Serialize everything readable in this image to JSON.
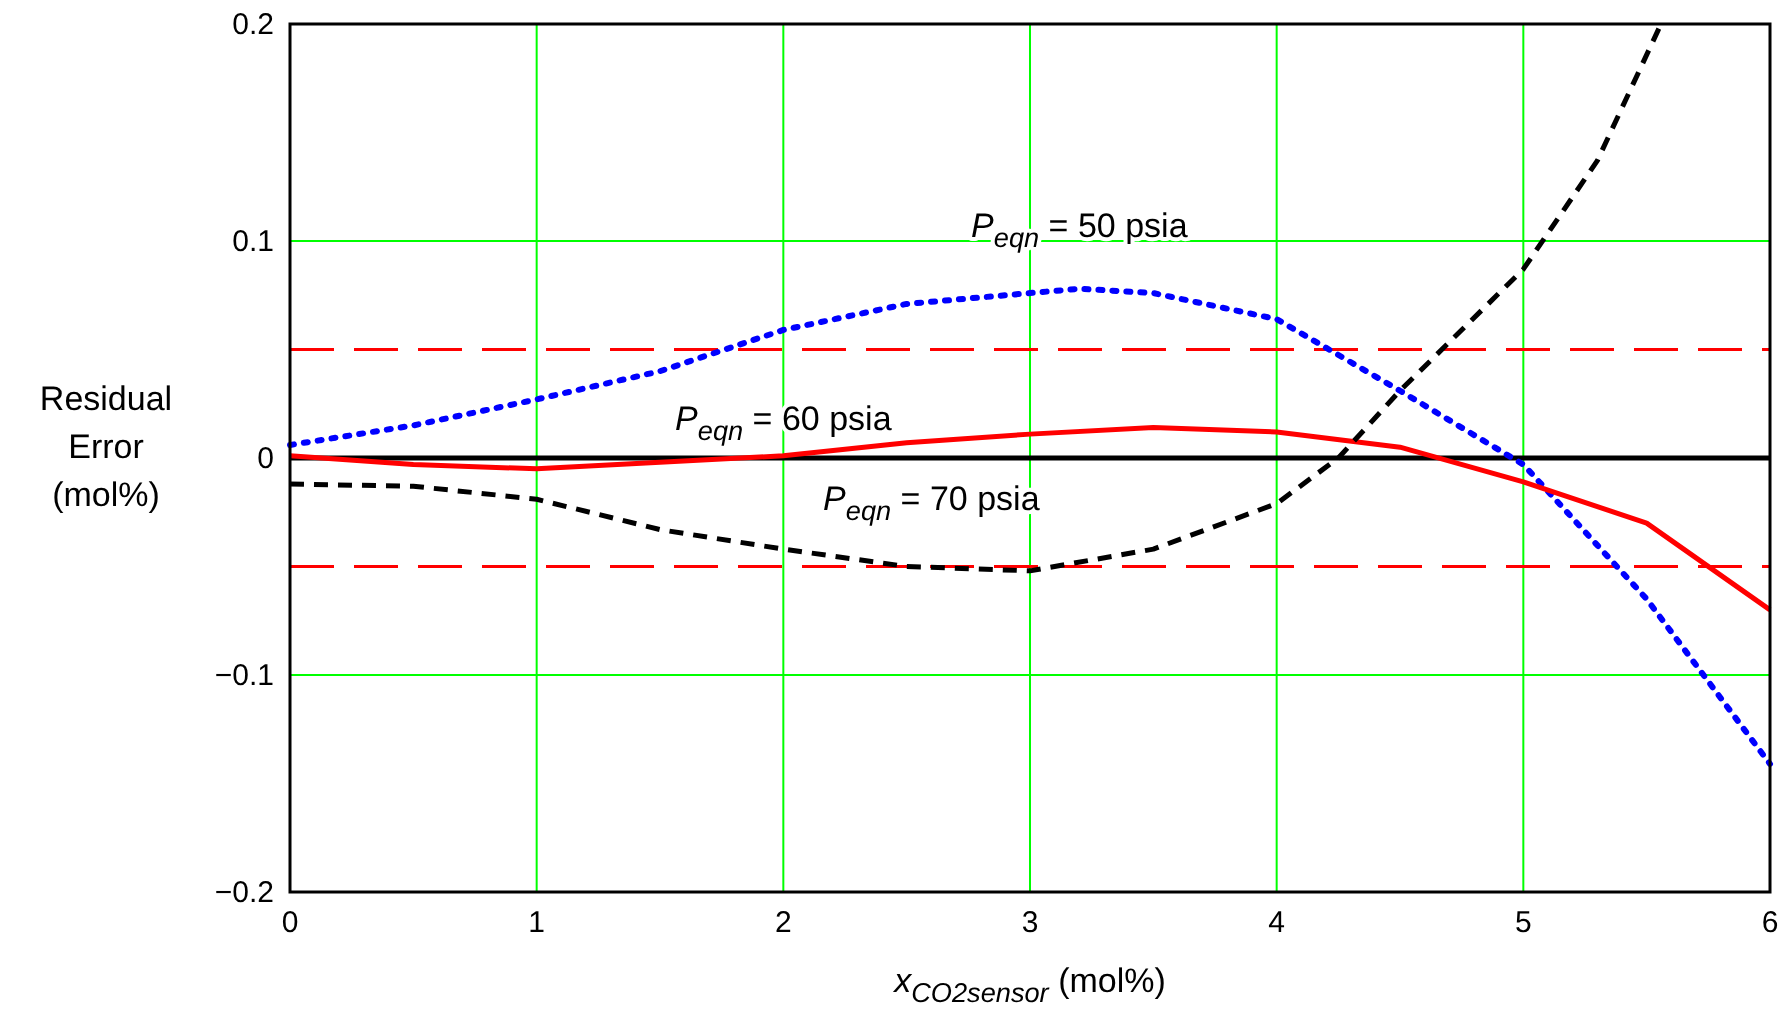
{
  "chart_data": {
    "type": "line",
    "xlabel": "x$_{CO2sensor}$ (mol%)",
    "ylabel": "Residual Error (mol%)",
    "xlim": [
      0,
      6
    ],
    "xticks": [
      0,
      1,
      2,
      3,
      4,
      5,
      6
    ],
    "ylim": [
      -0.2,
      0.2
    ],
    "yticks": [
      {
        "value": -0.2,
        "label": "−0.2"
      },
      {
        "value": -0.1,
        "label": "−0.1"
      },
      0,
      0.1,
      0.2
    ],
    "grid": true,
    "ref_lines": [
      {
        "axis": "y",
        "value": 0.05,
        "color": "#ff0000",
        "line_style": "dashed"
      },
      {
        "axis": "y",
        "value": -0.05,
        "color": "#ff0000",
        "line_style": "dashed"
      },
      {
        "axis": "y",
        "value": 0,
        "color": "#000000",
        "line_style": "solid"
      }
    ],
    "series": [
      {
        "name": "P$_{eqn}$ = 50 psia",
        "color": "#0000ff",
        "line_style": "dotted",
        "x": [
          0,
          0.5,
          1,
          1.5,
          2,
          2.5,
          3,
          3.2,
          3.5,
          4,
          4.5,
          5,
          5.5,
          6
        ],
        "values": [
          0.006,
          0.015,
          0.027,
          0.04,
          0.059,
          0.071,
          0.076,
          0.078,
          0.076,
          0.064,
          0.031,
          -0.003,
          -0.065,
          -0.141
        ]
      },
      {
        "name": "P$_{eqn}$ = 60 psia",
        "color": "#ff0000",
        "line_style": "solid",
        "x": [
          0,
          0.5,
          1,
          1.5,
          2,
          2.5,
          3,
          3.5,
          4,
          4.5,
          5,
          5.5,
          6
        ],
        "values": [
          0.001,
          -0.003,
          -0.005,
          -0.002,
          0.001,
          0.007,
          0.011,
          0.014,
          0.012,
          0.005,
          -0.011,
          -0.03,
          -0.07
        ]
      },
      {
        "name": "P$_{eqn}$ = 70 psia",
        "color": "#000000",
        "line_style": "dashed",
        "x": [
          0,
          0.5,
          1,
          1.5,
          2,
          2.5,
          3,
          3.5,
          4,
          4.25,
          4.5,
          5,
          5.3,
          5.55
        ],
        "values": [
          -0.012,
          -0.013,
          -0.019,
          -0.033,
          -0.042,
          -0.05,
          -0.052,
          -0.042,
          -0.021,
          0,
          0.031,
          0.087,
          0.137,
          0.198
        ]
      }
    ]
  }
}
